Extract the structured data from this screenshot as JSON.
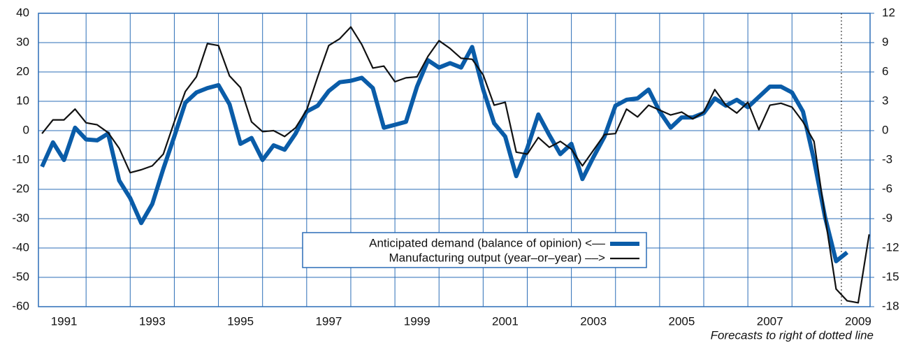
{
  "chart_data": {
    "type": "line",
    "note": "Forecasts to right of dotted line",
    "x": [
      1991,
      1991.25,
      1991.5,
      1991.75,
      1992,
      1992.25,
      1992.5,
      1992.75,
      1993,
      1993.25,
      1993.5,
      1993.75,
      1994,
      1994.25,
      1994.5,
      1994.75,
      1995,
      1995.25,
      1995.5,
      1995.75,
      1996,
      1996.25,
      1996.5,
      1996.75,
      1997,
      1997.25,
      1997.5,
      1997.75,
      1998,
      1998.25,
      1998.5,
      1998.75,
      1999,
      1999.25,
      1999.5,
      1999.75,
      2000,
      2000.25,
      2000.5,
      2000.75,
      2001,
      2001.25,
      2001.5,
      2001.75,
      2002,
      2002.25,
      2002.5,
      2002.75,
      2003,
      2003.25,
      2003.5,
      2003.75,
      2004,
      2004.25,
      2004.5,
      2004.75,
      2005,
      2005.25,
      2005.5,
      2005.75,
      2006,
      2006.25,
      2006.5,
      2006.75,
      2007,
      2007.25,
      2007.5,
      2007.75,
      2008,
      2008.25,
      2008.5,
      2008.75,
      2009,
      2009.25,
      2009.5,
      2009.75
    ],
    "series": [
      {
        "name": "Anticipated demand (balance of opinion) <––",
        "color": "#0a5ca8",
        "axis": "y",
        "values": [
          -12.3,
          -4,
          -10,
          1,
          -3,
          -3.3,
          -1,
          -17,
          -23,
          -31.5,
          -25,
          -13,
          -2,
          9.5,
          13,
          14.5,
          15.5,
          9,
          -4.5,
          -2.5,
          -10,
          -5,
          -6.5,
          -1,
          6.5,
          8.5,
          13.5,
          16.5,
          17,
          18,
          14.5,
          1,
          2,
          3,
          15,
          24,
          21.5,
          23,
          21.5,
          28.5,
          14,
          2.5,
          -2,
          -15.5,
          -6,
          5.5,
          -1.5,
          -8,
          -4.5,
          -16.5,
          -9,
          -2,
          8.5,
          10.5,
          11,
          14,
          6.5,
          1,
          4.5,
          4.5,
          6,
          11,
          8.5,
          10.5,
          8,
          11.5,
          15,
          15,
          13,
          6.5,
          -10,
          -29.5,
          -44.5,
          -41.5,
          null,
          null
        ]
      },
      {
        "name": "Manufacturing output (year–or–year) ––>",
        "color": "#111111",
        "axis": "y2",
        "values": [
          -0.3,
          1.1,
          1.1,
          2.2,
          0.8,
          0.6,
          -0.2,
          -1.8,
          -4.3,
          -4,
          -3.6,
          -2.4,
          0.9,
          4,
          5.5,
          8.9,
          8.7,
          5.6,
          4.4,
          0.9,
          -0.1,
          0,
          -0.6,
          0.3,
          2.1,
          5.5,
          8.7,
          9.4,
          10.6,
          8.8,
          6.4,
          6.6,
          5,
          5.4,
          5.5,
          7.6,
          9.2,
          8.4,
          7.4,
          7.3,
          5.7,
          2.6,
          2.9,
          -2.2,
          -2.4,
          -0.7,
          -1.7,
          -1.1,
          -1.9,
          -3.6,
          -2,
          -0.4,
          -0.3,
          2.2,
          1.4,
          2.6,
          2.1,
          1.6,
          1.9,
          1.2,
          1.9,
          4.2,
          2.6,
          1.8,
          2.9,
          0.1,
          2.6,
          2.8,
          2.4,
          0.9,
          -1.1,
          -8.8,
          -16.2,
          -17.4,
          -17.6,
          -10.6
        ]
      }
    ],
    "xlim": [
      1990.92,
      2009.77
    ],
    "xticks": [
      1991,
      1993,
      1995,
      1997,
      1999,
      2001,
      2003,
      2005,
      2007,
      2009
    ],
    "xgrid": [
      1992,
      1993,
      1994,
      1995,
      1996,
      1997,
      1998,
      1999,
      2000,
      2001,
      2002,
      2003,
      2004,
      2005,
      2006,
      2007,
      2008
    ],
    "forecast_x": 2009.12,
    "ylim": [
      -60,
      40
    ],
    "yticks": [
      -60,
      -50,
      -40,
      -30,
      -20,
      -10,
      0,
      10,
      20,
      30,
      40
    ],
    "y2lim": [
      -18,
      12
    ],
    "y2ticks": [
      -18,
      -15,
      -12,
      -9,
      -6,
      -3,
      0,
      3,
      6,
      9,
      12
    ],
    "grid": true,
    "legend": "bottom-center"
  }
}
